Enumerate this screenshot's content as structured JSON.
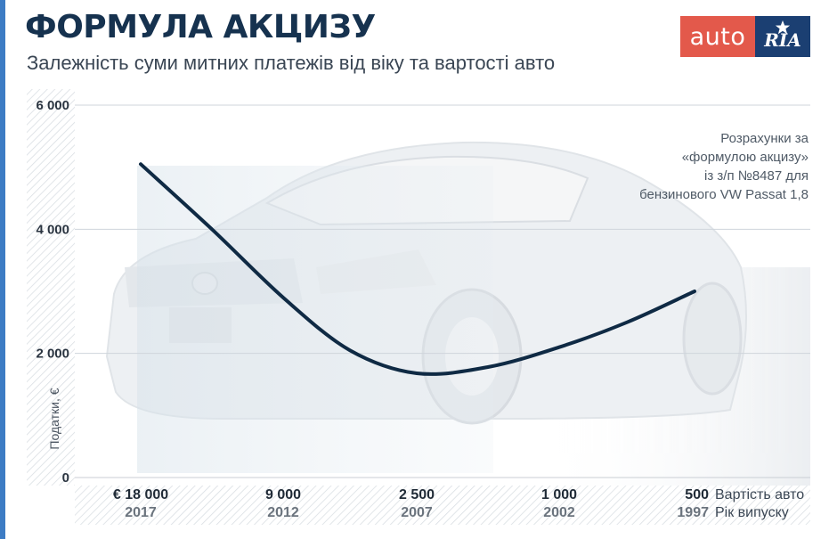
{
  "header": {
    "title": "ФОРМУЛА АКЦИЗУ",
    "subtitle": "Залежність суми митних платежів від віку та вартості авто"
  },
  "logo": {
    "left_text": "auto",
    "right_text": "RIA",
    "colors": {
      "left": "#e3594b",
      "right": "#1b3f72"
    }
  },
  "note": {
    "lines": [
      "Розрахунки за",
      "«формулою акцизу»",
      "із з/п №8487 для",
      "бензинового VW Passat 1,8"
    ]
  },
  "colors": {
    "accent": "#3d7cc4",
    "curve": "#0f2a44",
    "title": "#16324f",
    "hatch": "#d8dde2"
  },
  "background_icon": "car-photo-icon",
  "chart_data": {
    "type": "line",
    "ylabel": "Податки, €",
    "ylim": [
      0,
      6000
    ],
    "y_ticks": [
      0,
      2000,
      4000,
      6000
    ],
    "y_tick_labels": [
      "0",
      "2 000",
      "4 000",
      "6 000"
    ],
    "categories_value": [
      "€ 18 000",
      "9 000",
      "2 500",
      "1 000",
      "500"
    ],
    "categories_year": [
      "2017",
      "2012",
      "2007",
      "2002",
      "1997"
    ],
    "x_axis_label_value": "Вартість авто",
    "x_axis_label_year": "Рік випуску",
    "x": [
      0,
      0.5,
      1,
      1.5,
      2,
      2.5,
      3,
      3.5,
      4
    ],
    "series": [
      {
        "values": [
          5050,
          4000,
          2900,
          2050,
          1680,
          1780,
          2100,
          2500,
          3000
        ]
      }
    ],
    "grid": true
  }
}
